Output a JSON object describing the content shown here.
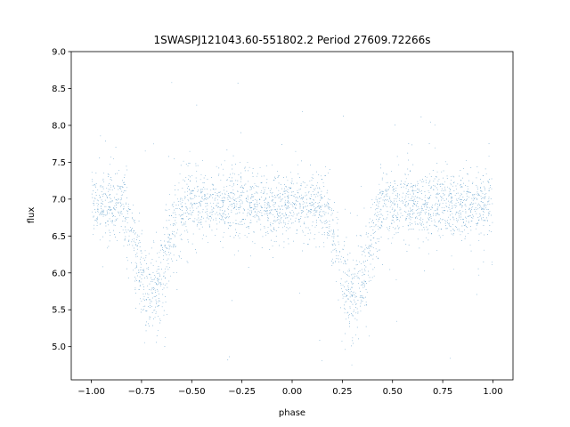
{
  "chart_data": {
    "type": "scatter",
    "title": "1SWASPJ121043.60-551802.2 Period 27609.72266s",
    "xlabel": "phase",
    "ylabel": "flux",
    "xlim": [
      -1.1,
      1.1
    ],
    "ylim": [
      4.55,
      9.0
    ],
    "xticks": [
      -1.0,
      -0.75,
      -0.5,
      -0.25,
      0.0,
      0.25,
      0.5,
      0.75,
      1.0
    ],
    "xtick_labels": [
      "−1.00",
      "−0.75",
      "−0.50",
      "−0.25",
      "0.00",
      "0.25",
      "0.50",
      "0.75",
      "1.00"
    ],
    "yticks": [
      5.0,
      5.5,
      6.0,
      6.5,
      7.0,
      7.5,
      8.0,
      8.5,
      9.0
    ],
    "ytick_labels": [
      "5.0",
      "5.5",
      "6.0",
      "6.5",
      "7.0",
      "7.5",
      "8.0",
      "8.5",
      "9.0"
    ],
    "grid": false,
    "marker_color": "#1f77b4",
    "series": [
      {
        "phase_range": [
          -1.0,
          1.0
        ],
        "baseline_flux": 6.92,
        "baseline_scatter": 0.22,
        "dips": [
          {
            "center_phase": -0.7,
            "min_flux": 5.7
          },
          {
            "center_phase": 0.3,
            "min_flux": 5.7
          }
        ],
        "dip_half_width": 0.17,
        "outlier_range": [
          4.75,
          8.85
        ],
        "approx_point_count": 18000
      }
    ]
  }
}
